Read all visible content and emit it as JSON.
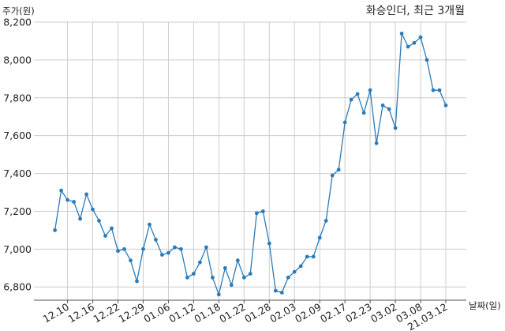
{
  "chart_data": {
    "type": "line",
    "title": "화승인더, 최근 3개월",
    "ylabel": "주가(원)",
    "xlabel": "날짜(일)",
    "ylim": [
      6730,
      8200
    ],
    "yticks": [
      6800,
      7000,
      7200,
      7400,
      7600,
      7800,
      8000,
      8200
    ],
    "ytick_labels": [
      "6,800",
      "7,000",
      "7,200",
      "7,400",
      "7,600",
      "7,800",
      "8,000",
      "8,200"
    ],
    "grid": true,
    "line_color": "#2b7bb9",
    "x_tick_labels": [
      "12.10",
      "12.16",
      "12.22",
      "12.29",
      "01.06",
      "01.12",
      "01.18",
      "01.22",
      "01.28",
      "02.03",
      "02.09",
      "02.17",
      "02.23",
      "03.02",
      "03.08",
      "21.03.12"
    ],
    "x_tick_index": [
      2,
      6,
      10,
      14,
      18,
      22,
      26,
      30,
      34,
      38,
      42,
      46,
      50,
      54,
      58,
      62
    ],
    "series": [
      {
        "values": [
          7100,
          7310,
          7260,
          7250,
          7160,
          7290,
          7210,
          7150,
          7070,
          7110,
          6990,
          7000,
          6940,
          6830,
          7000,
          7130,
          7050,
          6970,
          6980,
          7010,
          7000,
          6850,
          6870,
          6930,
          7010,
          6850,
          6760,
          6900,
          6810,
          6940,
          6850,
          6870,
          7190,
          7200,
          7030,
          6780,
          6770,
          6850,
          6880,
          6910,
          6960,
          6960,
          7060,
          7150,
          7390,
          7420,
          7670,
          7790,
          7820,
          7720,
          7840,
          7560,
          7760,
          7740,
          7640,
          8140,
          8070,
          8090,
          8120,
          8000,
          7840,
          7840,
          7760
        ]
      }
    ]
  }
}
